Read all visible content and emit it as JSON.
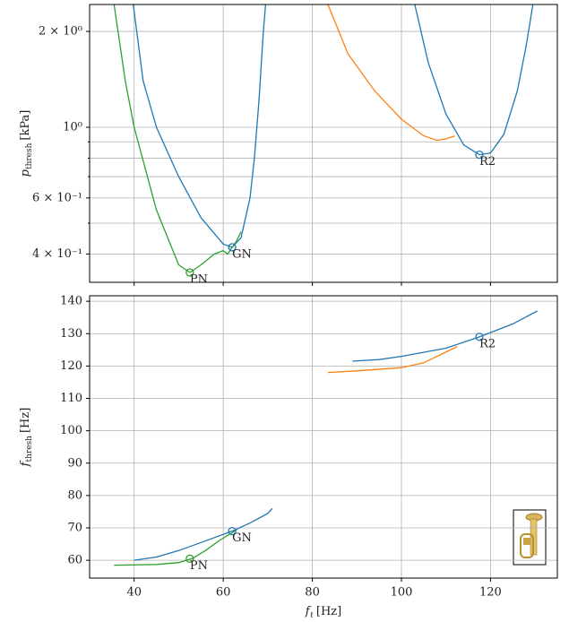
{
  "chart_data": [
    {
      "type": "line",
      "ylog": true,
      "grid": true,
      "xtick_labels": false,
      "ylabel": {
        "symbol": "p",
        "sub": "thresh",
        "unit": "[kPa]"
      },
      "xlim": [
        30,
        135
      ],
      "xticks": [
        40,
        60,
        80,
        100,
        120
      ],
      "ylim": [
        0.326,
        2.43
      ],
      "yticks": [
        {
          "value": 0.4,
          "label": "4 × 10⁻¹"
        },
        {
          "value": 0.6,
          "label": "6 × 10⁻¹"
        },
        {
          "value": 1,
          "label": "10⁰"
        },
        {
          "value": 2,
          "label": "2 × 10⁰"
        }
      ],
      "yminor": [
        0.5,
        0.7,
        0.8,
        0.9
      ],
      "series": [
        {
          "color": "#1f77b4",
          "x": [
            39.8,
            42,
            45,
            50,
            55,
            60,
            62,
            64,
            66,
            67,
            68,
            69,
            69.5,
            null,
            103,
            106,
            110,
            114,
            117.5,
            120,
            123,
            126,
            128,
            129.5
          ],
          "values": [
            2.43,
            1.4,
            1.0,
            0.7,
            0.52,
            0.43,
            0.42,
            0.45,
            0.6,
            0.8,
            1.2,
            2.0,
            2.43,
            null,
            2.43,
            1.6,
            1.1,
            0.88,
            0.82,
            0.83,
            0.95,
            1.3,
            1.8,
            2.43
          ]
        },
        {
          "color": "#ff7f0e",
          "x": [
            83.5,
            88,
            94,
            100,
            105,
            108,
            110,
            112
          ],
          "values": [
            2.43,
            1.7,
            1.3,
            1.06,
            0.94,
            0.91,
            0.92,
            0.94
          ]
        },
        {
          "color": "#2ca02c",
          "x": [
            35.5,
            38,
            40,
            45,
            50,
            52.5,
            55,
            58,
            60,
            61,
            62,
            63,
            64
          ],
          "values": [
            2.43,
            1.4,
            1.0,
            0.55,
            0.37,
            0.35,
            0.37,
            0.4,
            0.41,
            0.4,
            0.42,
            0.44,
            0.47
          ]
        }
      ],
      "markers": [
        {
          "label": "GN",
          "x": 62,
          "y": 0.42,
          "color": "#1f77b4"
        },
        {
          "label": "PN",
          "x": 52.5,
          "y": 0.35,
          "color": "#2ca02c"
        },
        {
          "label": "R2",
          "x": 117.5,
          "y": 0.82,
          "color": "#1f77b4"
        }
      ]
    },
    {
      "type": "line",
      "ylog": false,
      "grid": true,
      "xtick_labels": true,
      "ylabel": {
        "symbol": "f",
        "sub": "thresh",
        "unit": "[Hz]"
      },
      "xlabel": {
        "symbol": "f",
        "sub": "ℓ",
        "unit": "[Hz]"
      },
      "xlim": [
        30,
        135
      ],
      "xticks": [
        40,
        60,
        80,
        100,
        120
      ],
      "ylim": [
        54.5,
        141.7
      ],
      "yticks": [
        60,
        70,
        80,
        90,
        100,
        110,
        120,
        130,
        140
      ],
      "series": [
        {
          "color": "#1f77b4",
          "x": [
            40,
            45,
            50,
            55,
            62,
            66,
            70,
            71,
            null,
            89,
            95,
            100,
            110,
            117.5,
            125,
            130.5
          ],
          "values": [
            60,
            61,
            63,
            65.5,
            69,
            71.5,
            74.5,
            76,
            null,
            121.5,
            122,
            123,
            125.5,
            129,
            133,
            137
          ]
        },
        {
          "color": "#ff7f0e",
          "x": [
            83.5,
            90,
            100,
            105,
            108,
            112.5
          ],
          "values": [
            118,
            118.5,
            119.5,
            121,
            123,
            126
          ]
        },
        {
          "color": "#2ca02c",
          "x": [
            35.5,
            45,
            50,
            53,
            56,
            59,
            62,
            63
          ],
          "values": [
            58.5,
            58.7,
            59.3,
            60.5,
            63,
            66,
            68.5,
            69.5
          ]
        }
      ],
      "markers": [
        {
          "label": "GN",
          "x": 62,
          "y": 69,
          "color": "#1f77b4"
        },
        {
          "label": "PN",
          "x": 52.5,
          "y": 60.5,
          "color": "#2ca02c"
        },
        {
          "label": "R2",
          "x": 117.5,
          "y": 129,
          "color": "#1f77b4"
        }
      ]
    }
  ]
}
